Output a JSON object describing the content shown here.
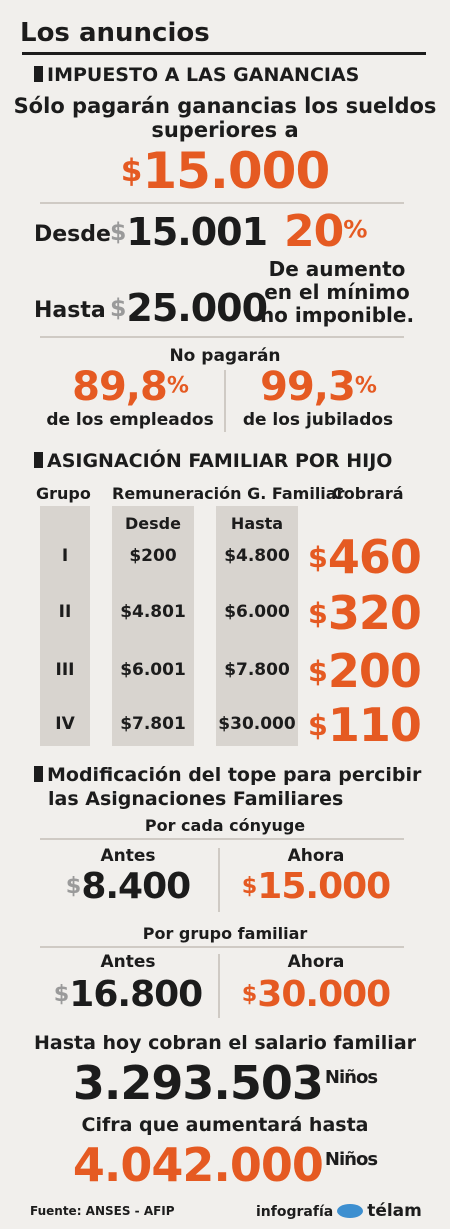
{
  "header": {
    "title": "Los anuncios"
  },
  "impuesto": {
    "section_title": "IMPUESTO A LAS GANANCIAS",
    "headline_line1": "Sólo pagarán ganancias los sueldos",
    "headline_line2": "superiores a",
    "threshold_sign": "$",
    "threshold": "15.000",
    "desde_label": "Desde",
    "desde_value": "15.001",
    "hasta_label": "Hasta",
    "hasta_value": "25.000",
    "percent_value": "20",
    "percent_sign": "%",
    "aumento_line1": "De aumento",
    "aumento_line2": "en el mínimo",
    "aumento_line3": "no imponible.",
    "no_pagaran": "No pagarán",
    "empleados_value": "89,8",
    "empleados_label": "de los empleados",
    "jubilados_value": "99,3",
    "jubilados_label": "de los jubilados"
  },
  "asignacion": {
    "section_title": "ASIGNACIÓN FAMILIAR POR HIJO",
    "col_grupo": "Grupo",
    "col_remuneracion": "Remuneración G. Familiar",
    "col_cobrara": "Cobrará",
    "sub_desde": "Desde",
    "sub_hasta": "Hasta",
    "rows": [
      {
        "grupo": "I",
        "desde": "$200",
        "hasta": "$4.800",
        "cobrara": "460"
      },
      {
        "grupo": "II",
        "desde": "$4.801",
        "hasta": "$6.000",
        "cobrara": "320"
      },
      {
        "grupo": "III",
        "desde": "$6.001",
        "hasta": "$7.800",
        "cobrara": "200"
      },
      {
        "grupo": "IV",
        "desde": "$7.801",
        "hasta": "$30.000",
        "cobrara": "110"
      }
    ]
  },
  "tope": {
    "section_title_line1": "Modificación del tope para percibir",
    "section_title_line2": "las Asignaciones Familiares",
    "conyuge_label": "Por cada cónyuge",
    "antes_label": "Antes",
    "ahora_label": "Ahora",
    "conyuge_antes": "8.400",
    "conyuge_ahora": "15.000",
    "grupo_label": "Por grupo familiar",
    "grupo_antes": "16.800",
    "grupo_ahora": "30.000"
  },
  "salario": {
    "hoy_label": "Hasta hoy cobran el salario familiar",
    "hoy_value": "3.293.503",
    "ninos_label": "Niños",
    "cifra_label": "Cifra que aumentará hasta",
    "cifra_value": "4.042.000"
  },
  "footer": {
    "fuente": "Fuente: ANSES - AFIP",
    "infografia": "infografía",
    "brand": "télam"
  },
  "colors": {
    "accent": "#e55a22",
    "text": "#1c1c1c",
    "background": "#f1efec"
  }
}
